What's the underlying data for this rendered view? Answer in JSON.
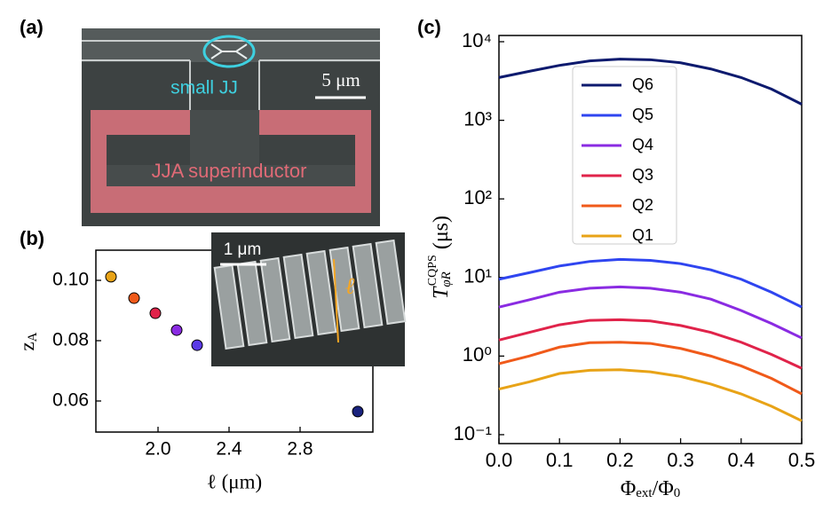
{
  "panel_a": {
    "label": "(a)",
    "annotations": [
      "small JJ",
      "5 μm",
      "JJA superinductor"
    ]
  },
  "chart_data": [
    {
      "type": "scatter",
      "panel_label": "(b)",
      "xlabel": "ℓ (μm)",
      "ylabel": {
        "main": "z",
        "sub": "A"
      },
      "x": [
        1.735,
        1.865,
        1.985,
        2.105,
        2.22,
        3.125
      ],
      "values": [
        0.1012,
        0.0941,
        0.0891,
        0.0835,
        0.0785,
        0.0565
      ],
      "colors": [
        "#e8a317",
        "#f05a1a",
        "#e0234a",
        "#8a2be2",
        "#5a3ae6",
        "#1a237e"
      ],
      "xlim": [
        1.65,
        3.21
      ],
      "ylim": [
        0.0497,
        0.11
      ],
      "xticks": [
        {
          "value": 2.0,
          "label": "2.0"
        },
        2.4,
        2.8
      ],
      "yticks": [
        {
          "value": 0.1,
          "label": "0.10"
        },
        {
          "value": 0.08,
          "label": "0.08"
        },
        {
          "value": 0.06,
          "label": "0.06"
        }
      ],
      "inset_annotations": [
        "1 μm",
        "ℓ"
      ]
    },
    {
      "type": "line",
      "panel_label": "(c)",
      "log_y": true,
      "xlabel": {
        "main": "Φ",
        "sub": "ext",
        "mid": "/Φ",
        "sub2": "0"
      },
      "ylabel": {
        "main": "T",
        "sub": "φR",
        "sup": "CQPS",
        "unit": "(μs)"
      },
      "x": [
        0,
        0.05,
        0.1,
        0.15,
        0.2,
        0.25,
        0.3,
        0.35,
        0.4,
        0.45,
        0.5
      ],
      "series": [
        {
          "name": "Q6",
          "color": "#0d1a6e",
          "values": [
            3500,
            4200,
            5000,
            5700,
            6000,
            5900,
            5400,
            4500,
            3500,
            2500,
            1600
          ]
        },
        {
          "name": "Q5",
          "color": "#2f45f0",
          "values": [
            9.5,
            11.5,
            14,
            16,
            17,
            16.5,
            15,
            12.5,
            9.5,
            6.5,
            4.2
          ]
        },
        {
          "name": "Q4",
          "color": "#8a2be2",
          "values": [
            4.2,
            5.2,
            6.5,
            7.3,
            7.6,
            7.3,
            6.5,
            5.3,
            3.8,
            2.6,
            1.7
          ]
        },
        {
          "name": "Q3",
          "color": "#e0234a",
          "values": [
            1.6,
            2.0,
            2.5,
            2.85,
            2.9,
            2.8,
            2.45,
            2.0,
            1.5,
            1.05,
            0.7
          ]
        },
        {
          "name": "Q2",
          "color": "#f05a1a",
          "values": [
            0.8,
            1.0,
            1.3,
            1.48,
            1.5,
            1.45,
            1.25,
            1.0,
            0.75,
            0.52,
            0.33
          ]
        },
        {
          "name": "Q1",
          "color": "#e8a317",
          "values": [
            0.38,
            0.47,
            0.6,
            0.66,
            0.67,
            0.63,
            0.55,
            0.44,
            0.33,
            0.23,
            0.15
          ]
        }
      ],
      "xlim": [
        0,
        0.5
      ],
      "ylim": [
        0.077,
        12000
      ],
      "xticks": [
        {
          "value": 0,
          "label": "0.0"
        },
        0.1,
        0.2,
        0.3,
        0.4,
        0.5
      ],
      "yticks": [
        {
          "value": 0.1,
          "label": "10⁻¹"
        },
        {
          "value": 1,
          "label": "10⁰"
        },
        {
          "value": 10,
          "label": "10¹"
        },
        {
          "value": 100,
          "label": "10²"
        },
        {
          "value": 1000,
          "label": "10³"
        },
        {
          "value": 10000,
          "label": "10⁴"
        }
      ],
      "legend": "upper left"
    }
  ]
}
